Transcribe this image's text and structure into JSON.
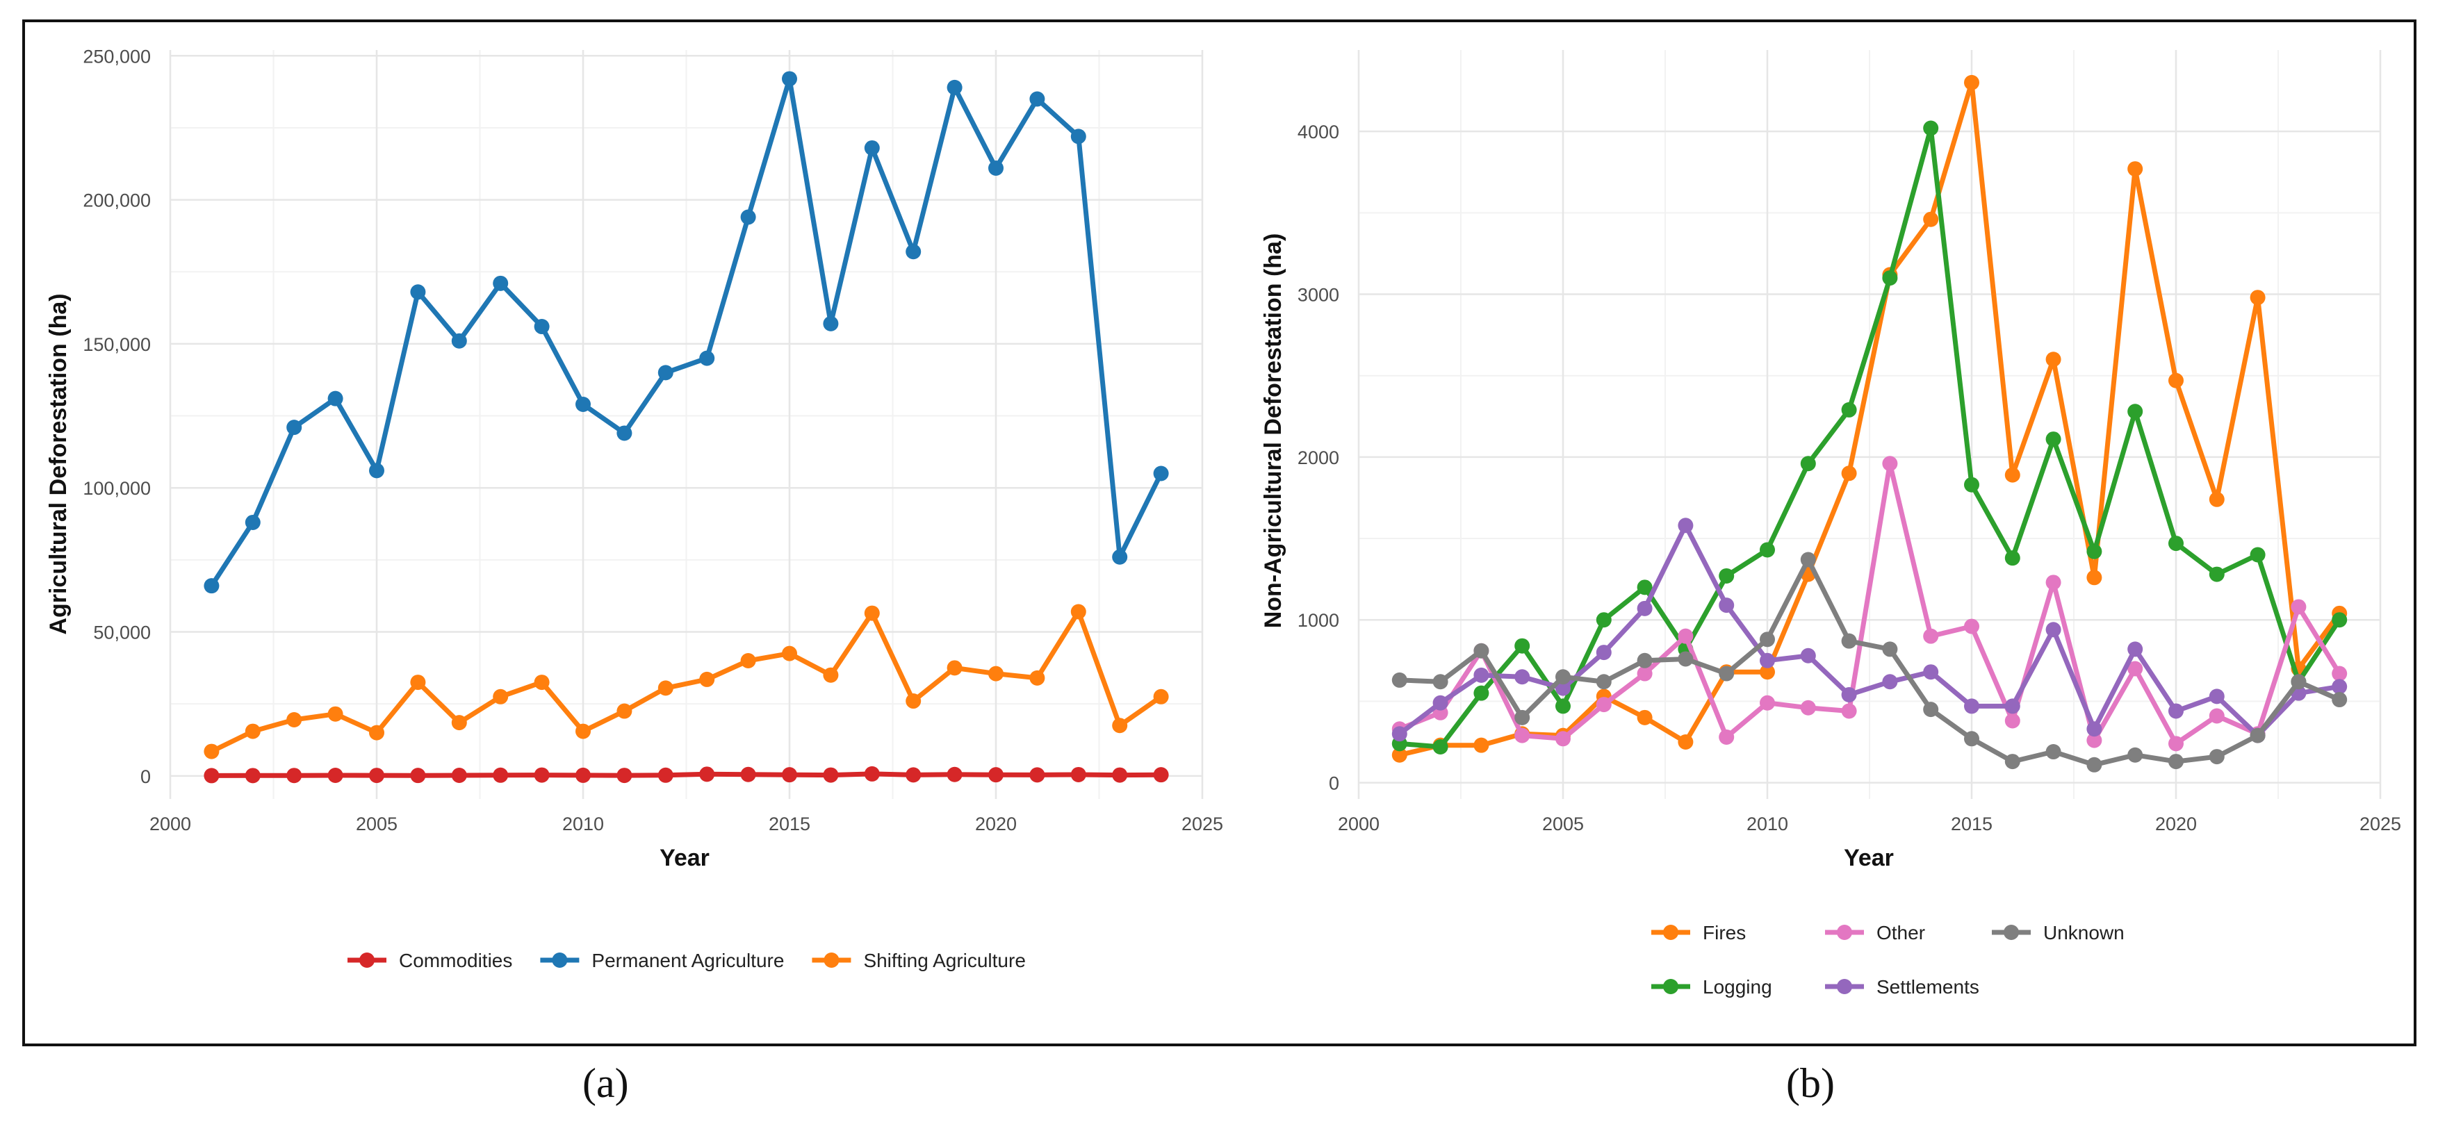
{
  "panel_labels": {
    "a": "(a)",
    "b": "(b)"
  },
  "chart_data": [
    {
      "type": "line",
      "id": "a",
      "title": "",
      "xlabel": "Year",
      "ylabel": "Agricultural Deforestation (ha)",
      "xlim": [
        2000,
        2025
      ],
      "ylim": [
        -8000,
        252000
      ],
      "xticks": [
        2000,
        2005,
        2010,
        2015,
        2020,
        2025
      ],
      "xtick_labels": [
        "2000",
        "2005",
        "2010",
        "2015",
        "2020",
        "2025"
      ],
      "yticks": [
        0,
        50000,
        100000,
        150000,
        200000,
        250000
      ],
      "ytick_labels": [
        "0",
        "50,000",
        "100,000",
        "150,000",
        "200,000",
        "250,000"
      ],
      "grid": true,
      "legend_position": "bottom",
      "x": [
        2001,
        2002,
        2003,
        2004,
        2005,
        2006,
        2007,
        2008,
        2009,
        2010,
        2011,
        2012,
        2013,
        2014,
        2015,
        2016,
        2017,
        2018,
        2019,
        2020,
        2021,
        2022,
        2023,
        2024
      ],
      "series": [
        {
          "name": "Commodities",
          "color": "#d62728",
          "values": [
            100,
            120,
            150,
            200,
            180,
            160,
            200,
            250,
            300,
            220,
            180,
            250,
            600,
            500,
            400,
            300,
            700,
            350,
            500,
            400,
            350,
            450,
            300,
            400
          ]
        },
        {
          "name": "Permanent Agriculture",
          "color": "#1f77b4",
          "values": [
            66000,
            88000,
            121000,
            131000,
            106000,
            168000,
            151000,
            171000,
            156000,
            129000,
            119000,
            140000,
            145000,
            194000,
            242000,
            157000,
            218000,
            182000,
            239000,
            211000,
            235000,
            222000,
            76000,
            105000
          ]
        },
        {
          "name": "Shifting Agriculture",
          "color": "#ff7f0e",
          "values": [
            8500,
            15500,
            19500,
            21500,
            15000,
            32500,
            18500,
            27500,
            32500,
            15500,
            22500,
            30500,
            33500,
            40000,
            42500,
            35000,
            56500,
            26000,
            37500,
            35500,
            34000,
            57000,
            17500,
            27500
          ]
        }
      ]
    },
    {
      "type": "line",
      "id": "b",
      "title": "",
      "xlabel": "Year",
      "ylabel": "Non-Agricultural Deforestation (ha)",
      "xlim": [
        2000,
        2025
      ],
      "ylim": [
        -100,
        4500
      ],
      "xticks": [
        2000,
        2005,
        2010,
        2015,
        2020,
        2025
      ],
      "xtick_labels": [
        "2000",
        "2005",
        "2010",
        "2015",
        "2020",
        "2025"
      ],
      "yticks": [
        0,
        1000,
        2000,
        3000,
        4000
      ],
      "ytick_labels": [
        "0",
        "1000",
        "2000",
        "3000",
        "4000"
      ],
      "grid": true,
      "legend_position": "bottom",
      "x": [
        2001,
        2002,
        2003,
        2004,
        2005,
        2006,
        2007,
        2008,
        2009,
        2010,
        2011,
        2012,
        2013,
        2014,
        2015,
        2016,
        2017,
        2018,
        2019,
        2020,
        2021,
        2022,
        2023,
        2024
      ],
      "series": [
        {
          "name": "Fires",
          "color": "#ff7f0e",
          "values": [
            170,
            230,
            230,
            300,
            290,
            530,
            400,
            250,
            680,
            680,
            1280,
            1900,
            3120,
            3460,
            4300,
            1890,
            2600,
            1260,
            3770,
            2470,
            1740,
            2980,
            700,
            1040
          ]
        },
        {
          "name": "Logging",
          "color": "#2ca02c",
          "values": [
            240,
            220,
            550,
            840,
            470,
            1000,
            1200,
            820,
            1270,
            1430,
            1960,
            2290,
            3100,
            4020,
            1830,
            1380,
            2110,
            1420,
            2280,
            1470,
            1280,
            1400,
            620,
            1000
          ]
        },
        {
          "name": "Other",
          "color": "#e377c2",
          "values": [
            330,
            430,
            810,
            290,
            270,
            480,
            670,
            900,
            280,
            490,
            460,
            440,
            1960,
            900,
            960,
            380,
            1230,
            260,
            700,
            240,
            410,
            300,
            1080,
            670
          ]
        },
        {
          "name": "Settlements",
          "color": "#9467bd",
          "values": [
            300,
            490,
            660,
            650,
            580,
            800,
            1070,
            1580,
            1090,
            750,
            780,
            540,
            620,
            680,
            470,
            470,
            940,
            330,
            820,
            440,
            530,
            290,
            550,
            590
          ]
        },
        {
          "name": "Unknown",
          "color": "#7f7f7f",
          "values": [
            630,
            620,
            810,
            400,
            650,
            620,
            750,
            760,
            670,
            880,
            1370,
            870,
            820,
            450,
            270,
            130,
            190,
            110,
            170,
            130,
            160,
            290,
            620,
            510
          ]
        }
      ]
    }
  ]
}
